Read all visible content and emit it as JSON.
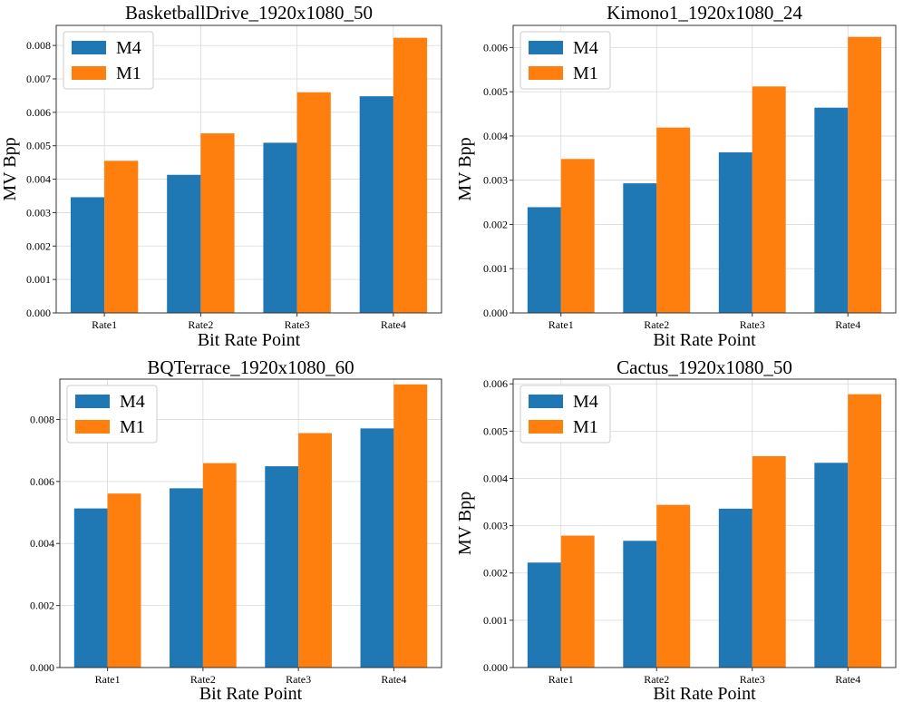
{
  "chart_data": [
    {
      "type": "bar",
      "title": "BasketballDrive_1920x1080_50",
      "xlabel": "Bit Rate Point",
      "ylabel": "MV Bpp",
      "categories": [
        "Rate1",
        "Rate2",
        "Rate3",
        "Rate4"
      ],
      "ylim": [
        0,
        0.0086
      ],
      "yticks": [
        0,
        0.001,
        0.002,
        0.003,
        0.004,
        0.005,
        0.006,
        0.007,
        0.008
      ],
      "ytick_labels": [
        "0.000",
        "0.001",
        "0.002",
        "0.003",
        "0.004",
        "0.005",
        "0.006",
        "0.007",
        "0.008"
      ],
      "grid": true,
      "legend": "top-left",
      "series": [
        {
          "name": "M4",
          "color": "#1f77b4",
          "values": [
            0.00346,
            0.00413,
            0.00509,
            0.00648
          ]
        },
        {
          "name": "M1",
          "color": "#ff7f0e",
          "values": [
            0.00455,
            0.00537,
            0.0066,
            0.00823
          ]
        }
      ]
    },
    {
      "type": "bar",
      "title": "Kimono1_1920x1080_24",
      "xlabel": "Bit Rate Point",
      "ylabel": "MV Bpp",
      "categories": [
        "Rate1",
        "Rate2",
        "Rate3",
        "Rate4"
      ],
      "ylim": [
        0,
        0.0065
      ],
      "yticks": [
        0,
        0.001,
        0.002,
        0.003,
        0.004,
        0.005,
        0.006
      ],
      "ytick_labels": [
        "0.000",
        "0.001",
        "0.002",
        "0.003",
        "0.004",
        "0.005",
        "0.006"
      ],
      "grid": true,
      "legend": "top-left",
      "series": [
        {
          "name": "M4",
          "color": "#1f77b4",
          "values": [
            0.00239,
            0.00293,
            0.00363,
            0.00464
          ]
        },
        {
          "name": "M1",
          "color": "#ff7f0e",
          "values": [
            0.00348,
            0.00419,
            0.00512,
            0.00624
          ]
        }
      ]
    },
    {
      "type": "bar",
      "title": "BQTerrace_1920x1080_60",
      "xlabel": "Bit Rate Point",
      "ylabel": "",
      "categories": [
        "Rate1",
        "Rate2",
        "Rate3",
        "Rate4"
      ],
      "ylim": [
        0,
        0.0093
      ],
      "yticks": [
        0,
        0.002,
        0.004,
        0.006,
        0.008
      ],
      "ytick_labels": [
        "0.000",
        "0.002",
        "0.004",
        "0.006",
        "0.008"
      ],
      "grid": true,
      "legend": "top-left",
      "series": [
        {
          "name": "M4",
          "color": "#1f77b4",
          "values": [
            0.00513,
            0.00578,
            0.00649,
            0.00771
          ]
        },
        {
          "name": "M1",
          "color": "#ff7f0e",
          "values": [
            0.00561,
            0.00659,
            0.00756,
            0.00913
          ]
        }
      ]
    },
    {
      "type": "bar",
      "title": "Cactus_1920x1080_50",
      "xlabel": "Bit Rate Point",
      "ylabel": "MV Bpp",
      "categories": [
        "Rate1",
        "Rate2",
        "Rate3",
        "Rate4"
      ],
      "ylim": [
        0,
        0.0061
      ],
      "yticks": [
        0,
        0.001,
        0.002,
        0.003,
        0.004,
        0.005,
        0.006
      ],
      "ytick_labels": [
        "0.000",
        "0.001",
        "0.002",
        "0.003",
        "0.004",
        "0.005",
        "0.006"
      ],
      "grid": true,
      "legend": "top-left",
      "series": [
        {
          "name": "M4",
          "color": "#1f77b4",
          "values": [
            0.00222,
            0.00268,
            0.00336,
            0.00433
          ]
        },
        {
          "name": "M1",
          "color": "#ff7f0e",
          "values": [
            0.00279,
            0.00344,
            0.00447,
            0.00578
          ]
        }
      ]
    }
  ]
}
